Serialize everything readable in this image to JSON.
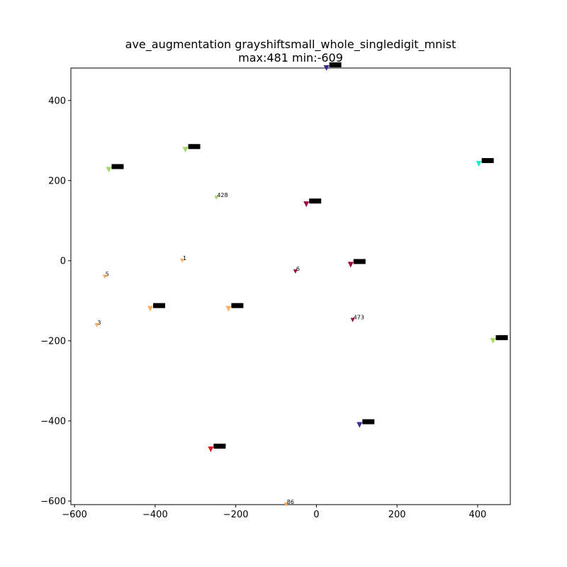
{
  "chart_data": {
    "type": "scatter",
    "title": "ave_augmentation grayshiftsmall_whole_singledigit_mnist",
    "subtitle": "max:481 min:-609",
    "xlabel": "",
    "ylabel": "",
    "xlim": [
      -609,
      481
    ],
    "ylim": [
      -609,
      481
    ],
    "xticks": [
      -600,
      -400,
      -200,
      0,
      200,
      400
    ],
    "yticks": [
      -600,
      -400,
      -200,
      0,
      200,
      400
    ],
    "grid": false,
    "marker": "triangle-down",
    "points": [
      {
        "x": 25,
        "y": 481,
        "color": "#3b2a8f",
        "label": "",
        "cluster": true
      },
      {
        "x": -325,
        "y": 277,
        "color": "#a6d96a",
        "label": "",
        "cluster": true
      },
      {
        "x": -515,
        "y": 227,
        "color": "#a6d96a",
        "label": "",
        "cluster": true
      },
      {
        "x": 403,
        "y": 242,
        "color": "#1de9c8",
        "label": "",
        "cluster": true
      },
      {
        "x": -248,
        "y": 157,
        "color": "#a6d96a",
        "label": "428",
        "cluster": false
      },
      {
        "x": -25,
        "y": 141,
        "color": "#9e0142",
        "label": "",
        "cluster": true
      },
      {
        "x": -333,
        "y": 0,
        "color": "#fdae61",
        "label": "1",
        "cluster": false
      },
      {
        "x": 85,
        "y": -10,
        "color": "#9e0142",
        "label": "",
        "cluster": true
      },
      {
        "x": -52,
        "y": -27,
        "color": "#9e0142",
        "label": "6",
        "cluster": false
      },
      {
        "x": -525,
        "y": -40,
        "color": "#fdae61",
        "label": "5",
        "cluster": false
      },
      {
        "x": -412,
        "y": -120,
        "color": "#fdae61",
        "label": "",
        "cluster": true
      },
      {
        "x": -218,
        "y": -120,
        "color": "#fdae61",
        "label": "",
        "cluster": true
      },
      {
        "x": 90,
        "y": -148,
        "color": "#9e0142",
        "label": "473",
        "cluster": false
      },
      {
        "x": -545,
        "y": -161,
        "color": "#fdae61",
        "label": "3",
        "cluster": false
      },
      {
        "x": 438,
        "y": -200,
        "color": "#a6d96a",
        "label": "",
        "cluster": true
      },
      {
        "x": 107,
        "y": -410,
        "color": "#3b2a8f",
        "label": "",
        "cluster": true
      },
      {
        "x": -262,
        "y": -471,
        "color": "#e31a1c",
        "label": "",
        "cluster": true
      },
      {
        "x": -75,
        "y": -609,
        "color": "#fdae61",
        "label": "86",
        "cluster": false
      }
    ]
  }
}
